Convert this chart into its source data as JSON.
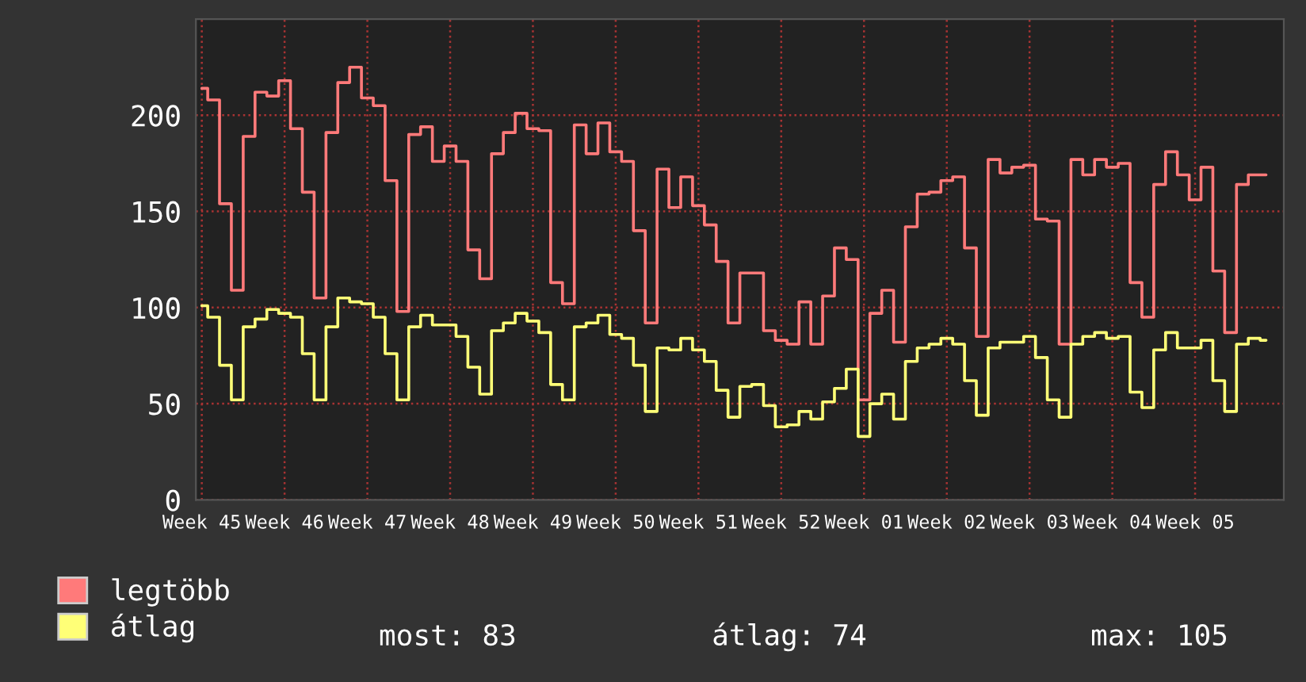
{
  "chart_data": {
    "type": "step",
    "categories": [
      "Week 45",
      null,
      null,
      null,
      null,
      null,
      null,
      "Week 46",
      null,
      null,
      null,
      null,
      null,
      null,
      "Week 47",
      null,
      null,
      null,
      null,
      null,
      null,
      "Week 48",
      null,
      null,
      null,
      null,
      null,
      null,
      "Week 49",
      null,
      null,
      null,
      null,
      null,
      null,
      "Week 50",
      null,
      null,
      null,
      null,
      null,
      null,
      "Week 51",
      null,
      null,
      null,
      null,
      null,
      null,
      "Week 52",
      null,
      null,
      null,
      null,
      null,
      null,
      "Week 01",
      null,
      null,
      null,
      null,
      null,
      null,
      "Week 02",
      null,
      null,
      null,
      null,
      null,
      null,
      "Week 03",
      null,
      null,
      null,
      null,
      null,
      null,
      "Week 04",
      null,
      null,
      null,
      null,
      null,
      null,
      "Week 05",
      null,
      null,
      null,
      null,
      null,
      null
    ],
    "series": [
      {
        "name": "legtöbb",
        "color": "#ff7a7a",
        "values": [
          214,
          208,
          154,
          109,
          189,
          212,
          210,
          218,
          193,
          160,
          105,
          191,
          217,
          225,
          209,
          205,
          166,
          98,
          190,
          194,
          176,
          184,
          176,
          130,
          115,
          180,
          191,
          201,
          193,
          192,
          113,
          102,
          195,
          180,
          196,
          181,
          176,
          140,
          92,
          172,
          152,
          168,
          153,
          143,
          124,
          92,
          118,
          118,
          88,
          83,
          81,
          103,
          81,
          106,
          131,
          125,
          52,
          97,
          109,
          82,
          142,
          159,
          160,
          166,
          168,
          131,
          85,
          177,
          170,
          173,
          174,
          146,
          145,
          81,
          177,
          169,
          177,
          173,
          175,
          113,
          95,
          164,
          181,
          169,
          156,
          173,
          119,
          87,
          164,
          169,
          169
        ]
      },
      {
        "name": "átlag",
        "color": "#ffff77",
        "values": [
          101,
          95,
          70,
          52,
          90,
          94,
          99,
          97,
          95,
          76,
          52,
          90,
          105,
          103,
          102,
          95,
          76,
          52,
          90,
          96,
          91,
          91,
          85,
          69,
          55,
          88,
          92,
          97,
          93,
          87,
          60,
          52,
          90,
          92,
          96,
          86,
          84,
          70,
          46,
          79,
          78,
          84,
          78,
          72,
          57,
          43,
          59,
          60,
          49,
          38,
          39,
          46,
          42,
          51,
          58,
          68,
          33,
          50,
          55,
          42,
          72,
          79,
          81,
          84,
          81,
          62,
          44,
          79,
          82,
          82,
          85,
          74,
          52,
          43,
          81,
          85,
          87,
          84,
          85,
          56,
          48,
          78,
          87,
          79,
          79,
          83,
          62,
          46,
          81,
          84,
          83
        ]
      }
    ],
    "ylim": [
      0,
      250
    ],
    "yticks": [
      0,
      50,
      100,
      150,
      200
    ],
    "grid": true,
    "legend": "bottom left",
    "annotations": [
      "most: 83",
      "átlag: 74",
      "max: 105"
    ]
  }
}
